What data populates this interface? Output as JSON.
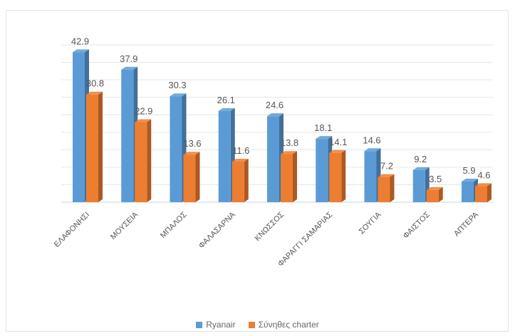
{
  "chart_data": {
    "type": "bar",
    "title": "",
    "xlabel": "",
    "ylabel": "",
    "categories": [
      "ΕΛΑΦΟΝΗΣΙ",
      "ΜΟΥΣΕΙΑ",
      "ΜΠΑΛΟΣ",
      "ΦΑΛΑΣΑΡΝΑ",
      "ΚΝΩΣΣΟΣ",
      "ΦΑΡΑΓΓΙ ΣΑΜΑΡΙΑΣ",
      "ΣΟΥΓΙΑ",
      "ΦΑΙΣΤΟΣ",
      "ΑΠΤΕΡΑ"
    ],
    "series": [
      {
        "name": "Ryanair",
        "color": "#5b9bd5",
        "values": [
          42.9,
          37.9,
          30.3,
          26.1,
          24.6,
          18.1,
          14.6,
          9.2,
          5.9
        ]
      },
      {
        "name": "Σύνηθες charter",
        "color": "#ed7d31",
        "values": [
          30.8,
          22.9,
          13.6,
          11.6,
          13.8,
          14.1,
          7.2,
          3.5,
          4.6
        ]
      }
    ],
    "ylim": [
      0,
      45
    ],
    "grid": true,
    "legend": "bottom",
    "data_labels": true
  }
}
